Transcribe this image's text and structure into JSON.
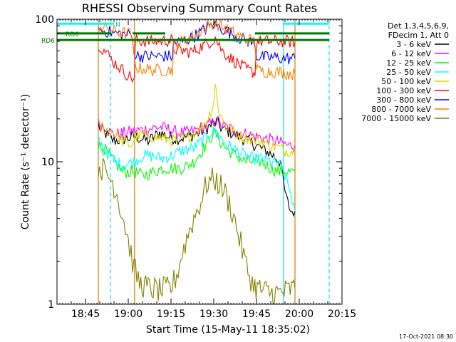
{
  "chart_data": {
    "type": "line",
    "title": "RHESSI Observing Summary Count Rates",
    "xlabel": "Start Time (15-May-11 18:35:02)",
    "ylabel": "Count Rate (s⁻¹ detector⁻¹)",
    "yscale": "log",
    "ylim": [
      1,
      100
    ],
    "xlim_minutes": [
      0,
      100
    ],
    "x_ticks": [
      {
        "label": "18:45",
        "min": 10
      },
      {
        "label": "19:00",
        "min": 25
      },
      {
        "label": "19:15",
        "min": 40
      },
      {
        "label": "19:30",
        "min": 55
      },
      {
        "label": "19:45",
        "min": 70
      },
      {
        "label": "20:00",
        "min": 85
      },
      {
        "label": "20:15",
        "min": 100
      }
    ],
    "y_ticks": [
      {
        "label": "1",
        "value": 1
      },
      {
        "label": "10",
        "value": 10
      },
      {
        "label": "100",
        "value": 100
      }
    ],
    "legend_header": [
      "Det 1,3,4,5,6,9,",
      "FDecim 1, Att 0"
    ],
    "flags": [
      {
        "label": "N",
        "color": "#00ffff",
        "segments": [
          [
            0,
            20
          ],
          [
            79.5,
            95.5
          ]
        ],
        "value": 93
      },
      {
        "label": "RD0",
        "color": "#007800",
        "segments": [
          [
            0,
            19
          ],
          [
            26.5,
            38
          ],
          [
            69.5,
            95.5
          ]
        ],
        "value": 79.5
      },
      {
        "label": "RD6",
        "color": "#007800",
        "segments": [
          [
            0,
            95.5
          ]
        ],
        "value": 71.5
      }
    ],
    "vertical_lines": [
      {
        "min": 14.5,
        "color": "#d08000",
        "style": "solid"
      },
      {
        "min": 18.7,
        "color": "#00e5e5",
        "style": "dashed"
      },
      {
        "min": 27.2,
        "color": "#d08000",
        "style": "solid"
      },
      {
        "min": 79.5,
        "color": "#00e5e5",
        "style": "solid"
      },
      {
        "min": 83.5,
        "color": "#d08000",
        "style": "solid"
      },
      {
        "min": 95.5,
        "color": "#00e5e5",
        "style": "dashed"
      }
    ],
    "series": [
      {
        "name": "3 - 6 keV",
        "color": "#000000",
        "points": [
          [
            14.5,
            18
          ],
          [
            18,
            15
          ],
          [
            20,
            14
          ],
          [
            24,
            14.5
          ],
          [
            27.5,
            15
          ],
          [
            32,
            14
          ],
          [
            36,
            16
          ],
          [
            39,
            15
          ],
          [
            42,
            14.5
          ],
          [
            46,
            15
          ],
          [
            50,
            16
          ],
          [
            54,
            18
          ],
          [
            56,
            19
          ],
          [
            58,
            17
          ],
          [
            61,
            16
          ],
          [
            64,
            15
          ],
          [
            67,
            14
          ],
          [
            70,
            13
          ],
          [
            73,
            12
          ],
          [
            76,
            11
          ],
          [
            78.5,
            10
          ],
          [
            79.5,
            7
          ],
          [
            80.5,
            5.5
          ],
          [
            82,
            4.5
          ],
          [
            83.5,
            4.5
          ]
        ]
      },
      {
        "name": "6 - 12 keV",
        "color": "#ff00ff",
        "points": [
          [
            14.5,
            18.5
          ],
          [
            18,
            16.5
          ],
          [
            20,
            15.5
          ],
          [
            24,
            16
          ],
          [
            27.5,
            16.5
          ],
          [
            32,
            17
          ],
          [
            36,
            17.5
          ],
          [
            39,
            17
          ],
          [
            42,
            16
          ],
          [
            46,
            16
          ],
          [
            50,
            17
          ],
          [
            54,
            18.5
          ],
          [
            56,
            19.5
          ],
          [
            58,
            18
          ],
          [
            61,
            17
          ],
          [
            64,
            16
          ],
          [
            67,
            15.5
          ],
          [
            70,
            15
          ],
          [
            73,
            14.5
          ],
          [
            76,
            14
          ],
          [
            79,
            13.5
          ],
          [
            81,
            13
          ],
          [
            83.5,
            13
          ]
        ]
      },
      {
        "name": "12 - 25 keV",
        "color": "#00ff00",
        "points": [
          [
            14.5,
            13
          ],
          [
            17,
            12
          ],
          [
            20,
            10
          ],
          [
            23,
            8.5
          ],
          [
            27,
            8.5
          ],
          [
            30,
            8
          ],
          [
            34,
            8.5
          ],
          [
            37,
            9
          ],
          [
            41,
            9
          ],
          [
            44,
            9
          ],
          [
            48,
            10
          ],
          [
            51,
            12
          ],
          [
            54,
            15
          ],
          [
            55.5,
            16
          ],
          [
            57,
            14
          ],
          [
            60,
            12
          ],
          [
            63,
            11
          ],
          [
            66,
            10
          ],
          [
            69,
            10
          ],
          [
            72,
            10
          ],
          [
            75,
            9
          ],
          [
            78,
            8.5
          ],
          [
            80,
            8.5
          ],
          [
            83.5,
            8.5
          ]
        ]
      },
      {
        "name": "25 - 50 keV",
        "color": "#00ffff",
        "points": [
          [
            14.5,
            14
          ],
          [
            17,
            12
          ],
          [
            20,
            10
          ],
          [
            23,
            9.5
          ],
          [
            27,
            10
          ],
          [
            30,
            11
          ],
          [
            34,
            11
          ],
          [
            37,
            10.5
          ],
          [
            40,
            11
          ],
          [
            44,
            12
          ],
          [
            48,
            12.5
          ],
          [
            51,
            14
          ],
          [
            54,
            16
          ],
          [
            55.5,
            16.5
          ],
          [
            57,
            15
          ],
          [
            60,
            13
          ],
          [
            63,
            12
          ],
          [
            66,
            11
          ],
          [
            69,
            10.5
          ],
          [
            72,
            10.5
          ],
          [
            75,
            10
          ],
          [
            78,
            9.5
          ],
          [
            80,
            8
          ],
          [
            82,
            6
          ],
          [
            83.5,
            4.5
          ]
        ]
      },
      {
        "name": "50 - 100 keV",
        "color": "#d8d800",
        "points": [
          [
            14.5,
            18
          ],
          [
            17,
            17
          ],
          [
            20,
            16
          ],
          [
            23,
            14
          ],
          [
            26,
            13
          ],
          [
            27.5,
            15
          ],
          [
            30,
            15.5
          ],
          [
            34,
            15
          ],
          [
            38,
            14.5
          ],
          [
            42,
            14
          ],
          [
            46,
            15
          ],
          [
            50,
            17
          ],
          [
            53,
            20
          ],
          [
            55,
            26
          ],
          [
            55.5,
            35
          ],
          [
            56,
            30
          ],
          [
            57,
            22
          ],
          [
            59,
            18
          ],
          [
            62,
            16
          ],
          [
            65,
            15
          ],
          [
            68,
            14.5
          ],
          [
            70,
            14
          ],
          [
            72,
            14
          ],
          [
            75,
            13
          ],
          [
            78,
            12.5
          ],
          [
            80,
            12
          ],
          [
            83.5,
            12
          ]
        ]
      },
      {
        "name": "100 - 300 keV",
        "color": "#ff0000",
        "points": [
          [
            14.5,
            68
          ],
          [
            16,
            62
          ],
          [
            18,
            56
          ],
          [
            20,
            50
          ],
          [
            22,
            46
          ],
          [
            24,
            42
          ],
          [
            26,
            39
          ],
          [
            27.2,
            38
          ],
          [
            27.5,
            72
          ],
          [
            30,
            70
          ],
          [
            34,
            70
          ],
          [
            38,
            71
          ],
          [
            40.5,
            71
          ],
          [
            41,
            62
          ],
          [
            44,
            60
          ],
          [
            47,
            59
          ],
          [
            50,
            63
          ],
          [
            53,
            68
          ],
          [
            55,
            72
          ],
          [
            55.5,
            75
          ],
          [
            56.5,
            68
          ],
          [
            58,
            60
          ],
          [
            61,
            53
          ],
          [
            64,
            48
          ],
          [
            67,
            44
          ],
          [
            69.5,
            42
          ],
          [
            70,
            70
          ],
          [
            73,
            70
          ],
          [
            76,
            70
          ],
          [
            80,
            70
          ],
          [
            83.5,
            69
          ]
        ]
      },
      {
        "name": "300 - 800 keV",
        "color": "#0000ff",
        "points": [
          [
            14.5,
            84
          ],
          [
            18,
            82
          ],
          [
            20,
            80
          ],
          [
            24,
            78
          ],
          [
            26,
            78
          ],
          [
            27.5,
            56
          ],
          [
            30,
            55
          ],
          [
            34,
            55
          ],
          [
            38,
            55
          ],
          [
            40.5,
            55
          ],
          [
            41,
            68
          ],
          [
            44,
            70
          ],
          [
            47,
            74
          ],
          [
            50,
            80
          ],
          [
            53,
            88
          ],
          [
            55,
            92
          ],
          [
            56,
            90
          ],
          [
            58,
            86
          ],
          [
            61,
            80
          ],
          [
            64,
            74
          ],
          [
            67,
            70
          ],
          [
            69.5,
            68
          ],
          [
            70,
            55
          ],
          [
            73,
            54
          ],
          [
            76,
            54
          ],
          [
            80,
            53
          ],
          [
            83.5,
            53
          ]
        ]
      },
      {
        "name": "800 - 7000 keV",
        "color": "#ff8000",
        "points": [
          [
            14.5,
            90
          ],
          [
            18,
            86
          ],
          [
            20,
            82
          ],
          [
            24,
            80
          ],
          [
            26,
            79
          ],
          [
            27.5,
            46
          ],
          [
            30,
            45
          ],
          [
            34,
            44
          ],
          [
            38,
            44
          ],
          [
            40.5,
            44
          ],
          [
            41,
            65
          ],
          [
            44,
            70
          ],
          [
            47,
            75
          ],
          [
            50,
            82
          ],
          [
            53,
            90
          ],
          [
            55,
            95
          ],
          [
            56,
            93
          ],
          [
            58,
            88
          ],
          [
            61,
            82
          ],
          [
            64,
            76
          ],
          [
            67,
            72
          ],
          [
            69.5,
            70
          ],
          [
            70,
            44
          ],
          [
            73,
            43
          ],
          [
            76,
            43
          ],
          [
            80,
            42
          ],
          [
            83.5,
            41
          ]
        ]
      },
      {
        "name": "7000 - 15000 keV",
        "color": "#808000",
        "points": [
          [
            14.5,
            9.5
          ],
          [
            17,
            8.5
          ],
          [
            19,
            7.5
          ],
          [
            20.5,
            6.5
          ],
          [
            22,
            5
          ],
          [
            24,
            3.5
          ],
          [
            25.5,
            2.5
          ],
          [
            27,
            1.8
          ],
          [
            29,
            1.4
          ],
          [
            32,
            1.3
          ],
          [
            36,
            1.25
          ],
          [
            40,
            1.3
          ],
          [
            42,
            1.6
          ],
          [
            44,
            2.3
          ],
          [
            46,
            3.1
          ],
          [
            48,
            4
          ],
          [
            50,
            5
          ],
          [
            52,
            6.5
          ],
          [
            53,
            7.3
          ],
          [
            55,
            7.5
          ],
          [
            57,
            7
          ],
          [
            59,
            6
          ],
          [
            61,
            4.8
          ],
          [
            63,
            3.5
          ],
          [
            65,
            2.4
          ],
          [
            67,
            1.7
          ],
          [
            69,
            1.35
          ],
          [
            72,
            1.25
          ],
          [
            75,
            1.2
          ],
          [
            78,
            1.2
          ],
          [
            81,
            1.25
          ],
          [
            83.5,
            1.3
          ]
        ]
      }
    ]
  },
  "timestamp": "17-Oct-2021 08:30"
}
